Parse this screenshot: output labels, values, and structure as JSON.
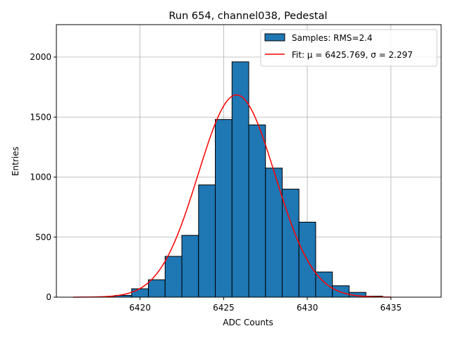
{
  "chart_data": {
    "type": "histogram",
    "title": "Run 654, channel038, Pedestal",
    "xlabel": "ADC Counts",
    "ylabel": "Entries",
    "xlim": [
      6415.0,
      6438.0
    ],
    "ylim": [
      0,
      2270
    ],
    "xticks": [
      6420,
      6425,
      6430,
      6435
    ],
    "yticks": [
      0,
      500,
      1000,
      1500,
      2000
    ],
    "grid": true,
    "bins": [
      {
        "x0": 6417.5,
        "x1": 6418.5,
        "value": 2
      },
      {
        "x0": 6418.5,
        "x1": 6419.5,
        "value": 15
      },
      {
        "x0": 6419.5,
        "x1": 6420.5,
        "value": 70
      },
      {
        "x0": 6420.5,
        "x1": 6421.5,
        "value": 145
      },
      {
        "x0": 6421.5,
        "x1": 6422.5,
        "value": 340
      },
      {
        "x0": 6422.5,
        "x1": 6423.5,
        "value": 515
      },
      {
        "x0": 6423.5,
        "x1": 6424.5,
        "value": 935
      },
      {
        "x0": 6424.5,
        "x1": 6425.5,
        "value": 1480
      },
      {
        "x0": 6425.5,
        "x1": 6426.5,
        "value": 1960
      },
      {
        "x0": 6426.5,
        "x1": 6427.5,
        "value": 1435
      },
      {
        "x0": 6427.5,
        "x1": 6428.5,
        "value": 1075
      },
      {
        "x0": 6428.5,
        "x1": 6429.5,
        "value": 900
      },
      {
        "x0": 6429.5,
        "x1": 6430.5,
        "value": 625
      },
      {
        "x0": 6430.5,
        "x1": 6431.5,
        "value": 210
      },
      {
        "x0": 6431.5,
        "x1": 6432.5,
        "value": 95
      },
      {
        "x0": 6432.5,
        "x1": 6433.5,
        "value": 40
      },
      {
        "x0": 6433.5,
        "x1": 6434.5,
        "value": 8
      }
    ],
    "fit": {
      "mu": 6425.769,
      "sigma": 2.297,
      "amplitude": 1685,
      "x_range": [
        6416.0,
        6435.0
      ]
    },
    "legend": {
      "position": "top-right",
      "entries": [
        {
          "label": "Samples: RMS=2.4",
          "kind": "patch",
          "color": "#1f77b4"
        },
        {
          "label": "Fit: μ = 6425.769, σ = 2.297",
          "kind": "line",
          "color": "#ff0000"
        }
      ]
    },
    "colors": {
      "bar_fill": "#1f77b4",
      "bar_edge": "#000000",
      "fit_line": "#ff0000",
      "grid": "#b0b0b0"
    }
  }
}
